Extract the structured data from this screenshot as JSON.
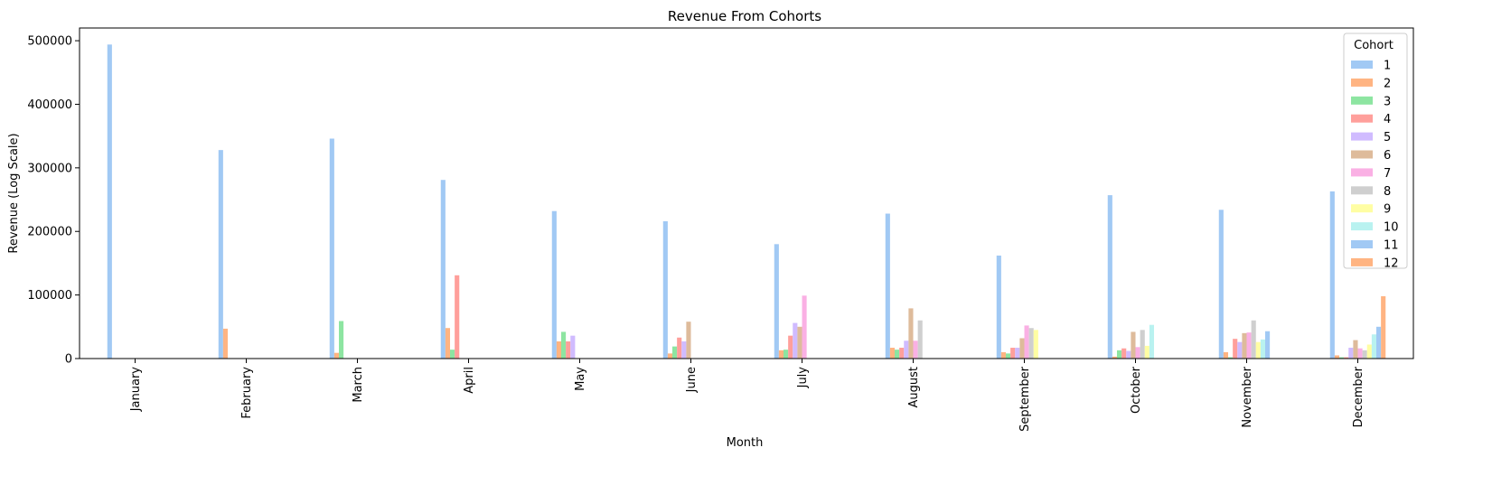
{
  "chart_data": {
    "type": "bar",
    "title": "Revenue From Cohorts",
    "xlabel": "Month",
    "ylabel": "Revenue (Log Scale)",
    "ylim": [
      0,
      520000
    ],
    "yticks": [
      0,
      100000,
      200000,
      300000,
      400000,
      500000
    ],
    "categories": [
      "January",
      "February",
      "March",
      "April",
      "May",
      "June",
      "July",
      "August",
      "September",
      "October",
      "November",
      "December"
    ],
    "legend": {
      "title": "Cohort",
      "placement": "top-right"
    },
    "grid": false,
    "series": [
      {
        "name": "1",
        "color": "#a1c9f4",
        "values": [
          494000,
          328000,
          346000,
          281000,
          232000,
          216000,
          180000,
          228000,
          162000,
          257000,
          234000,
          263000
        ]
      },
      {
        "name": "2",
        "color": "#ffb482",
        "values": [
          0,
          47000,
          9000,
          48000,
          27000,
          8000,
          13000,
          17000,
          10000,
          3000,
          10000,
          5000
        ]
      },
      {
        "name": "3",
        "color": "#8de5a1",
        "values": [
          0,
          0,
          59000,
          14000,
          42000,
          19000,
          14000,
          14000,
          8000,
          13000,
          2000,
          2000
        ]
      },
      {
        "name": "4",
        "color": "#ff9f9b",
        "values": [
          0,
          0,
          0,
          131000,
          27000,
          33000,
          36000,
          17000,
          17000,
          16000,
          31000,
          2000
        ]
      },
      {
        "name": "5",
        "color": "#d0bbff",
        "values": [
          0,
          0,
          0,
          0,
          36000,
          27000,
          56000,
          28000,
          17000,
          12000,
          26000,
          17000
        ]
      },
      {
        "name": "6",
        "color": "#debb9b",
        "values": [
          0,
          0,
          0,
          0,
          0,
          58000,
          50000,
          79000,
          32000,
          42000,
          40000,
          29000
        ]
      },
      {
        "name": "7",
        "color": "#fab0e4",
        "values": [
          0,
          0,
          0,
          0,
          0,
          0,
          99000,
          28000,
          52000,
          18000,
          41000,
          16000
        ]
      },
      {
        "name": "8",
        "color": "#cfcfcf",
        "values": [
          0,
          0,
          0,
          0,
          0,
          0,
          0,
          60000,
          48000,
          45000,
          60000,
          13000
        ]
      },
      {
        "name": "9",
        "color": "#fffea3",
        "values": [
          0,
          0,
          0,
          0,
          0,
          0,
          0,
          0,
          45000,
          20000,
          26000,
          22000
        ]
      },
      {
        "name": "10",
        "color": "#b9f2f0",
        "values": [
          0,
          0,
          0,
          0,
          0,
          0,
          0,
          0,
          0,
          53000,
          30000,
          38000
        ]
      },
      {
        "name": "11",
        "color": "#a1c9f4",
        "values": [
          0,
          0,
          0,
          0,
          0,
          0,
          0,
          0,
          0,
          0,
          43000,
          50000
        ]
      },
      {
        "name": "12",
        "color": "#ffb482",
        "values": [
          0,
          0,
          0,
          0,
          0,
          0,
          0,
          0,
          0,
          0,
          0,
          98000
        ]
      }
    ]
  }
}
